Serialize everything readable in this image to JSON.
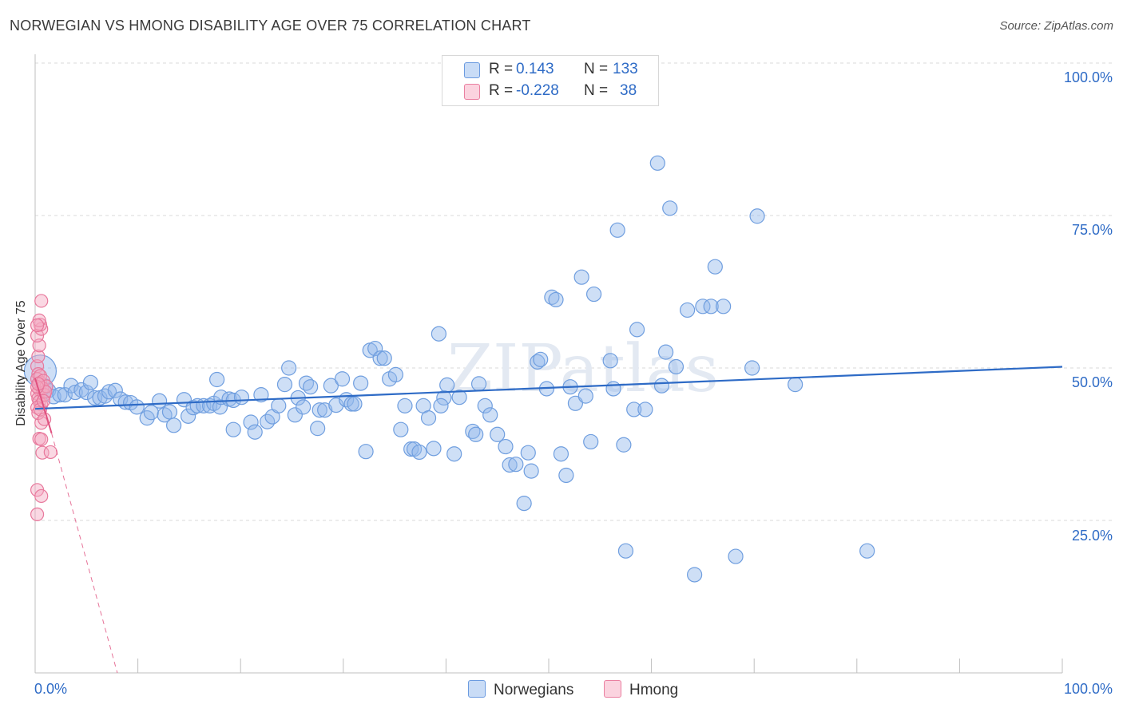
{
  "title": "NORWEGIAN VS HMONG DISABILITY AGE OVER 75 CORRELATION CHART",
  "source": "Source: ZipAtlas.com",
  "watermark": "ZIPatlas",
  "legend": {
    "r_label": "R =",
    "n_label": "N =",
    "rows": [
      {
        "r_value": "0.143",
        "n_value": "133",
        "color": "#a9c8f0",
        "border": "#6c9be0"
      },
      {
        "r_value": "-0.228",
        "n_value": "38",
        "color": "#f6b8cb",
        "border": "#ea7fa0"
      }
    ]
  },
  "bottom_legend": [
    {
      "label": "Norwegians",
      "color": "#a9c8f0",
      "border": "#6c9be0"
    },
    {
      "label": "Hmong",
      "color": "#f6b8cb",
      "border": "#ea7fa0"
    }
  ],
  "colors": {
    "blue": "#2e6bc6",
    "blue_fill": "rgba(147,185,236,0.45)",
    "blue_stroke": "#6f9edf",
    "pink_line": "#e0507f",
    "pink_fill": "rgba(244,168,193,0.45)",
    "pink_stroke": "#e8789c",
    "grid": "#d9d9d9"
  },
  "chart_data": {
    "type": "scatter",
    "title": "NORWEGIAN VS HMONG DISABILITY AGE OVER 75 CORRELATION CHART",
    "xlabel": "",
    "ylabel": "Disability Age Over 75",
    "xlim": [
      0,
      100
    ],
    "ylim": [
      0,
      100
    ],
    "x_tick_labels": [
      "0.0%",
      "100.0%"
    ],
    "y_tick_values": [
      25,
      50,
      75,
      100
    ],
    "y_tick_labels": [
      "25.0%",
      "50.0%",
      "75.0%",
      "100.0%"
    ],
    "series": [
      {
        "name": "Norwegians",
        "r": 0.143,
        "n": 133,
        "trend": {
          "x": [
            0,
            100
          ],
          "y": [
            43.3,
            50.2
          ],
          "style": "solid"
        },
        "points": [
          [
            0.5,
            49.5
          ],
          [
            1.0,
            47.0
          ],
          [
            1.3,
            46.3
          ],
          [
            1.8,
            45.3
          ],
          [
            2.4,
            45.6
          ],
          [
            2.9,
            45.6
          ],
          [
            3.5,
            47.1
          ],
          [
            3.9,
            46.0
          ],
          [
            4.5,
            46.4
          ],
          [
            5.0,
            46.0
          ],
          [
            5.4,
            47.6
          ],
          [
            5.8,
            45.1
          ],
          [
            6.3,
            45.1
          ],
          [
            6.8,
            45.4
          ],
          [
            7.2,
            46.1
          ],
          [
            7.8,
            46.3
          ],
          [
            8.3,
            44.9
          ],
          [
            8.8,
            44.4
          ],
          [
            9.3,
            44.3
          ],
          [
            9.9,
            43.6
          ],
          [
            10.9,
            41.8
          ],
          [
            11.3,
            42.7
          ],
          [
            12.1,
            44.6
          ],
          [
            12.6,
            42.3
          ],
          [
            13.1,
            42.8
          ],
          [
            13.5,
            40.6
          ],
          [
            14.5,
            44.8
          ],
          [
            14.9,
            42.1
          ],
          [
            15.4,
            43.5
          ],
          [
            15.8,
            43.8
          ],
          [
            16.4,
            43.8
          ],
          [
            17.0,
            43.8
          ],
          [
            17.4,
            44.2
          ],
          [
            17.7,
            48.1
          ],
          [
            18.0,
            43.6
          ],
          [
            18.1,
            45.2
          ],
          [
            18.9,
            44.9
          ],
          [
            19.3,
            44.7
          ],
          [
            19.3,
            39.9
          ],
          [
            20.1,
            45.2
          ],
          [
            21.0,
            41.1
          ],
          [
            21.4,
            39.5
          ],
          [
            22.0,
            45.6
          ],
          [
            22.6,
            41.2
          ],
          [
            23.1,
            42.0
          ],
          [
            23.7,
            43.8
          ],
          [
            24.3,
            47.3
          ],
          [
            24.7,
            50.0
          ],
          [
            25.3,
            42.3
          ],
          [
            25.6,
            45.1
          ],
          [
            26.1,
            43.6
          ],
          [
            26.4,
            47.5
          ],
          [
            26.8,
            46.9
          ],
          [
            27.5,
            40.1
          ],
          [
            27.7,
            43.1
          ],
          [
            28.2,
            43.1
          ],
          [
            28.8,
            47.1
          ],
          [
            29.3,
            43.9
          ],
          [
            29.9,
            48.2
          ],
          [
            30.3,
            44.8
          ],
          [
            30.8,
            44.1
          ],
          [
            31.1,
            44.1
          ],
          [
            31.7,
            47.5
          ],
          [
            32.2,
            36.3
          ],
          [
            32.6,
            52.9
          ],
          [
            33.1,
            53.2
          ],
          [
            33.6,
            51.6
          ],
          [
            34.0,
            51.6
          ],
          [
            34.5,
            48.2
          ],
          [
            35.1,
            48.9
          ],
          [
            35.6,
            39.9
          ],
          [
            36.0,
            43.8
          ],
          [
            36.6,
            36.7
          ],
          [
            36.9,
            36.7
          ],
          [
            37.4,
            36.2
          ],
          [
            37.8,
            43.8
          ],
          [
            38.3,
            41.8
          ],
          [
            38.8,
            36.8
          ],
          [
            39.3,
            55.6
          ],
          [
            39.8,
            45.1
          ],
          [
            40.1,
            47.2
          ],
          [
            40.8,
            35.9
          ],
          [
            41.3,
            45.2
          ],
          [
            42.6,
            39.6
          ],
          [
            42.9,
            39.1
          ],
          [
            43.2,
            47.4
          ],
          [
            43.8,
            43.8
          ],
          [
            44.3,
            42.3
          ],
          [
            45.0,
            39.1
          ],
          [
            45.8,
            37.1
          ],
          [
            46.2,
            34.1
          ],
          [
            46.8,
            34.2
          ],
          [
            47.6,
            27.8
          ],
          [
            48.0,
            36.1
          ],
          [
            48.3,
            33.1
          ],
          [
            48.9,
            51.0
          ],
          [
            49.2,
            51.4
          ],
          [
            49.8,
            46.6
          ],
          [
            50.3,
            61.6
          ],
          [
            50.7,
            61.2
          ],
          [
            51.2,
            35.9
          ],
          [
            51.7,
            32.4
          ],
          [
            52.1,
            46.9
          ],
          [
            52.6,
            44.2
          ],
          [
            53.2,
            64.9
          ],
          [
            53.6,
            45.4
          ],
          [
            54.1,
            37.9
          ],
          [
            54.4,
            62.1
          ],
          [
            56.0,
            51.2
          ],
          [
            56.3,
            46.6
          ],
          [
            56.7,
            72.6
          ],
          [
            57.3,
            37.4
          ],
          [
            57.5,
            20.0
          ],
          [
            58.3,
            43.2
          ],
          [
            58.6,
            56.3
          ],
          [
            59.4,
            43.2
          ],
          [
            60.6,
            83.6
          ],
          [
            61.0,
            47.1
          ],
          [
            61.4,
            52.6
          ],
          [
            61.8,
            76.2
          ],
          [
            62.4,
            50.2
          ],
          [
            63.5,
            59.5
          ],
          [
            64.2,
            16.1
          ],
          [
            65.0,
            60.1
          ],
          [
            65.8,
            60.1
          ],
          [
            66.2,
            66.6
          ],
          [
            67.0,
            60.1
          ],
          [
            68.2,
            19.1
          ],
          [
            69.8,
            50.0
          ],
          [
            70.3,
            74.9
          ],
          [
            74.0,
            47.3
          ],
          [
            81.0,
            20.0
          ],
          [
            39.5,
            43.8
          ]
        ]
      },
      {
        "name": "Hmong",
        "r": -0.228,
        "n": 38,
        "trend": {
          "x": [
            0,
            1.6
          ],
          "y": [
            48.3,
            39.3
          ],
          "style": "solid",
          "extension": {
            "x": [
              1.6,
              8.0
            ],
            "y": [
              39.3,
              0.0
            ],
            "style": "dashed"
          }
        },
        "points": [
          [
            0.2,
            50.3
          ],
          [
            0.3,
            49.0
          ],
          [
            0.2,
            48.2
          ],
          [
            0.5,
            47.6
          ],
          [
            0.4,
            46.5
          ],
          [
            0.2,
            45.8
          ],
          [
            0.3,
            45.0
          ],
          [
            0.4,
            44.5
          ],
          [
            0.6,
            44.0
          ],
          [
            0.2,
            43.5
          ],
          [
            0.5,
            48.7
          ],
          [
            0.8,
            47.9
          ],
          [
            0.3,
            51.9
          ],
          [
            0.4,
            53.7
          ],
          [
            0.2,
            55.3
          ],
          [
            0.6,
            56.4
          ],
          [
            0.5,
            57.1
          ],
          [
            0.4,
            57.8
          ],
          [
            0.6,
            61.0
          ],
          [
            0.2,
            57.0
          ],
          [
            0.7,
            46.7
          ],
          [
            0.9,
            45.6
          ],
          [
            1.1,
            47.0
          ],
          [
            0.6,
            41.0
          ],
          [
            0.4,
            38.4
          ],
          [
            0.6,
            38.3
          ],
          [
            0.7,
            36.1
          ],
          [
            1.5,
            36.2
          ],
          [
            0.2,
            30.0
          ],
          [
            0.6,
            29.0
          ],
          [
            0.2,
            26.0
          ],
          [
            1.0,
            46.1
          ],
          [
            0.3,
            42.6
          ],
          [
            0.5,
            43.2
          ],
          [
            0.2,
            46.9
          ],
          [
            0.3,
            47.4
          ],
          [
            0.8,
            44.6
          ],
          [
            0.9,
            41.6
          ]
        ]
      }
    ]
  }
}
